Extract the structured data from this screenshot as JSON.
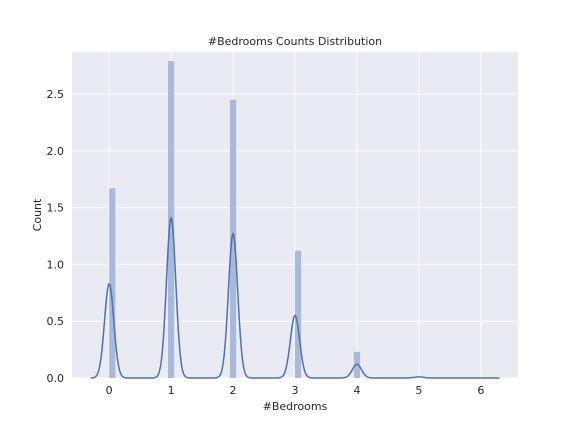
{
  "chart_data": {
    "type": "bar",
    "title": "#Bedrooms Counts Distribution",
    "xlabel": "#Bedrooms",
    "ylabel": "Count",
    "xlim": [
      -0.6,
      6.6
    ],
    "ylim": [
      0,
      2.87
    ],
    "x_ticks": [
      0,
      1,
      2,
      3,
      4,
      5,
      6
    ],
    "y_ticks": [
      0.0,
      0.5,
      1.0,
      1.5,
      2.0,
      2.5
    ],
    "y_tick_labels": [
      "0.0",
      "0.5",
      "1.0",
      "1.5",
      "2.0",
      "2.5"
    ],
    "grid": true,
    "bar_color": "#a8b9d9",
    "line_color": "#4c72b0",
    "background_color": "#eaeaf2",
    "bar_width": 0.1,
    "bars": [
      {
        "x": 0.05,
        "value": 1.67
      },
      {
        "x": 1.0,
        "value": 2.79
      },
      {
        "x": 2.0,
        "value": 2.45
      },
      {
        "x": 3.05,
        "value": 1.12
      },
      {
        "x": 4.0,
        "value": 0.23
      }
    ],
    "kde": [
      {
        "center": 0.0,
        "height": 0.83,
        "sigma": 0.075
      },
      {
        "center": 1.0,
        "height": 1.41,
        "sigma": 0.075
      },
      {
        "center": 2.0,
        "height": 1.27,
        "sigma": 0.075
      },
      {
        "center": 3.0,
        "height": 0.55,
        "sigma": 0.075
      },
      {
        "center": 4.0,
        "height": 0.12,
        "sigma": 0.075
      },
      {
        "center": 5.0,
        "height": 0.01,
        "sigma": 0.075
      }
    ],
    "kde_range": [
      -0.3,
      6.3
    ]
  }
}
